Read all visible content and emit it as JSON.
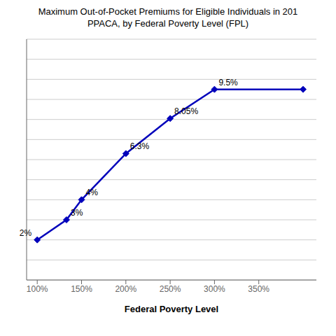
{
  "chart_data": {
    "type": "line",
    "title": "Maximum Out-of-Pocket Premiums for Eligible Individuals in 201",
    "subtitle": "PPACA, by Federal Poverty Level (FPL)",
    "x_label": "Federal Poverty Level",
    "x": [
      100,
      133,
      150,
      200,
      250,
      300,
      400
    ],
    "values": [
      2.0,
      3.0,
      4.0,
      6.3,
      8.05,
      9.5,
      9.5
    ],
    "value_labels": [
      "2%",
      "3%",
      "4%",
      "6.3%",
      "8.05%",
      "9.5%",
      null
    ],
    "data_labels": true,
    "color": "#0000BB",
    "marker": "diamond",
    "xlim": [
      88,
      415
    ],
    "xticks": [
      {
        "value": 100,
        "label": "100%"
      },
      {
        "value": 150,
        "label": "150%"
      },
      {
        "value": 200,
        "label": "200%"
      },
      {
        "value": 250,
        "label": "250%"
      },
      {
        "value": 300,
        "label": "300%"
      },
      {
        "value": 350,
        "label": "350%"
      }
    ],
    "ylim": [
      0,
      12
    ],
    "yticks": [
      0,
      1,
      2,
      3,
      4,
      5,
      6,
      7,
      8,
      9,
      10,
      11,
      12
    ],
    "grid": true,
    "tick_labels": "x"
  }
}
